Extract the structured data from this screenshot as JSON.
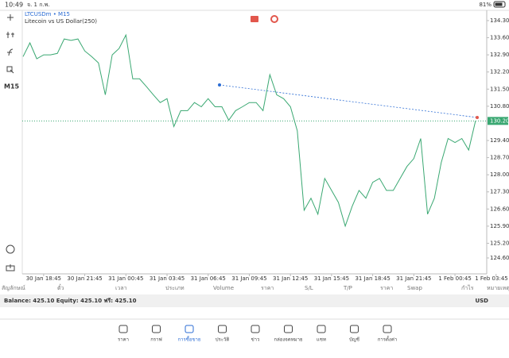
{
  "status_bar": {
    "time": "10:49",
    "date": "จ. 1 ก.พ.",
    "battery": "81%"
  },
  "chart_data": {
    "type": "line",
    "symbol": "LTCUSDm • M15",
    "subtitle": "Litecoin vs US Dollar(250)",
    "timeframe": "M15",
    "categories": [
      null,
      null,
      null,
      "30 Jan 18:45",
      null,
      null,
      null,
      null,
      null,
      "30 Jan 21:45",
      null,
      null,
      null,
      null,
      null,
      "31 Jan 00:45",
      null,
      null,
      null,
      null,
      null,
      "31 Jan 03:45",
      null,
      null,
      null,
      null,
      null,
      "31 Jan 06:45",
      null,
      null,
      null,
      null,
      null,
      "31 Jan 09:45",
      null,
      null,
      null,
      null,
      null,
      "31 Jan 12:45",
      null,
      null,
      null,
      null,
      null,
      "31 Jan 15:45",
      null,
      null,
      null,
      null,
      null,
      "31 Jan 18:45",
      null,
      null,
      null,
      null,
      null,
      "31 Jan 21:45",
      null,
      null,
      null,
      null,
      null,
      "1 Feb 00:45",
      null,
      null,
      null,
      null,
      null,
      "1 Feb 03:45"
    ],
    "values": [
      132.83,
      133.39,
      132.74,
      132.9,
      132.9,
      132.96,
      133.55,
      133.49,
      133.55,
      133.06,
      132.83,
      132.57,
      131.27,
      132.9,
      133.16,
      133.71,
      131.92,
      131.92,
      131.6,
      131.27,
      130.95,
      131.11,
      129.97,
      130.62,
      130.62,
      130.95,
      130.78,
      131.11,
      130.78,
      130.78,
      130.23,
      130.62,
      130.78,
      130.95,
      130.95,
      130.62,
      132.09,
      131.27,
      131.11,
      130.78,
      129.8,
      126.55,
      127.04,
      126.39,
      127.85,
      127.36,
      126.87,
      125.9,
      126.71,
      127.36,
      127.04,
      127.69,
      127.85,
      127.36,
      127.36,
      127.85,
      128.34,
      128.66,
      129.48,
      126.39,
      127.04,
      128.5,
      129.48,
      129.32,
      129.48,
      129.01,
      130.2,
      null,
      null,
      null
    ],
    "color": "#3aa872",
    "ylim": [
      123.95,
      134.72
    ],
    "yticks": [
      {
        "value": 134.3,
        "label": "134.30"
      },
      {
        "value": 133.6,
        "label": "133.60"
      },
      {
        "value": 132.9,
        "label": "132.90"
      },
      {
        "value": 132.2,
        "label": "132.20"
      },
      {
        "value": 131.5,
        "label": "131.50"
      },
      {
        "value": 130.8,
        "label": "130.80"
      },
      {
        "value": 129.4,
        "label": "129.40"
      },
      {
        "value": 128.7,
        "label": "128.70"
      },
      {
        "value": 128.0,
        "label": "128.00"
      },
      {
        "value": 127.3,
        "label": "127.30"
      },
      {
        "value": 126.6,
        "label": "126.60"
      },
      {
        "value": 125.9,
        "label": "125.90"
      },
      {
        "value": 125.2,
        "label": "125.20"
      },
      {
        "value": 124.6,
        "label": "124.60"
      }
    ],
    "current_price": {
      "value": 130.2,
      "label": "130.20"
    }
  },
  "table": {
    "headers": [
      "สัญลักษณ์",
      "ตั๋ว",
      "เวลา",
      "ประเภท",
      "Volume",
      "ราคา",
      "S/L",
      "T/P",
      "ราคา",
      "Swap",
      "กำไร",
      "หมายเหตุ"
    ]
  },
  "account": {
    "summary": "Balance: 425.10 Equity: 425.10 ฟรี: 425.10",
    "currency": "USD"
  },
  "tabs": [
    "ราคา",
    "กราฟ",
    "การซื้อขาย",
    "ประวัติ",
    "ข่าว",
    "กล่องจดหมาย",
    "แชท",
    "บัญชี",
    "การตั้งค่า"
  ]
}
